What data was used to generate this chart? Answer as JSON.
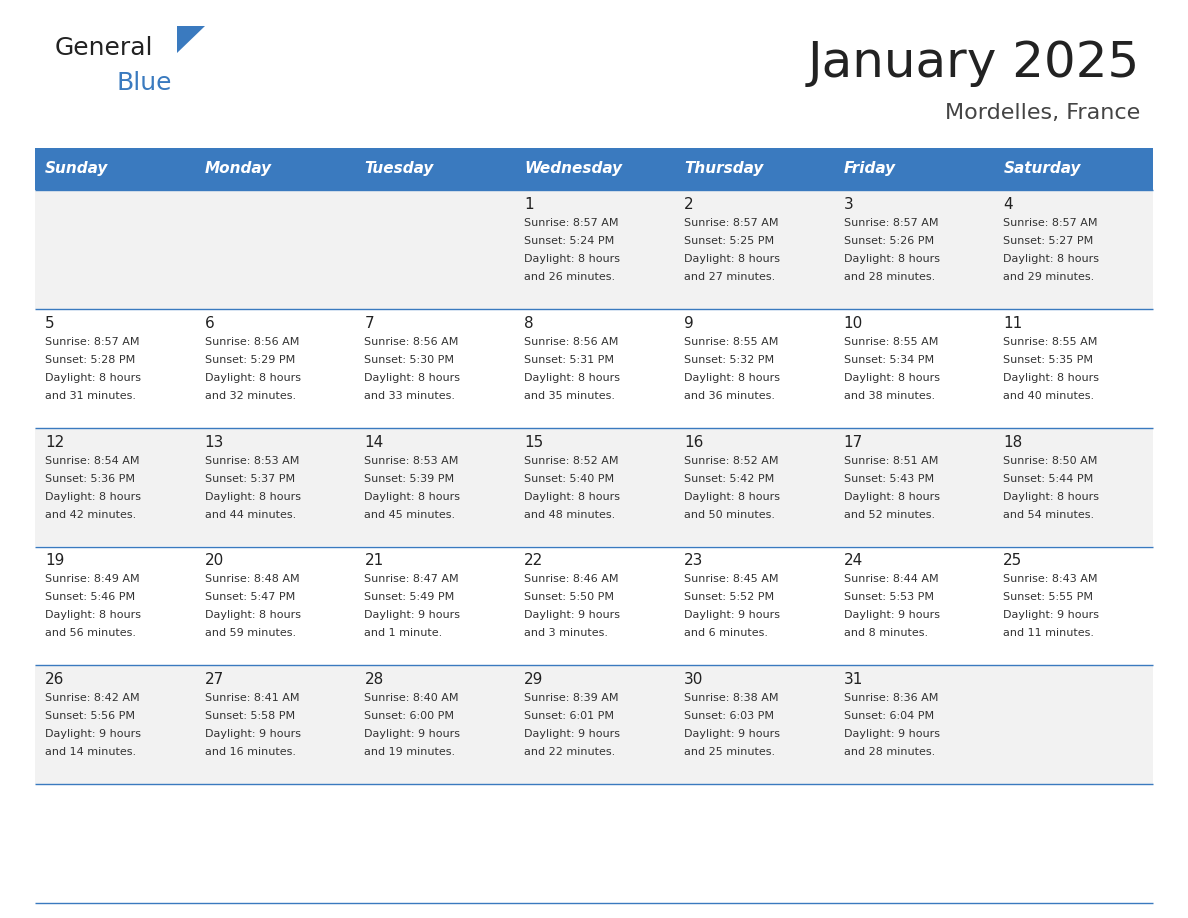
{
  "title": "January 2025",
  "subtitle": "Mordelles, France",
  "header_color": "#3a7abf",
  "header_text_color": "#ffffff",
  "day_headers": [
    "Sunday",
    "Monday",
    "Tuesday",
    "Wednesday",
    "Thursday",
    "Friday",
    "Saturday"
  ],
  "text_color": "#333333",
  "line_color": "#3a7abf",
  "row_bg_colors": [
    "#f2f2f2",
    "#ffffff",
    "#f2f2f2",
    "#ffffff",
    "#f2f2f2",
    "#ffffff"
  ],
  "days": [
    {
      "day": null,
      "sunrise": null,
      "sunset": null,
      "daylight": null
    },
    {
      "day": null,
      "sunrise": null,
      "sunset": null,
      "daylight": null
    },
    {
      "day": null,
      "sunrise": null,
      "sunset": null,
      "daylight": null
    },
    {
      "day": 1,
      "sunrise": "8:57 AM",
      "sunset": "5:24 PM",
      "daylight": "8 hours\nand 26 minutes."
    },
    {
      "day": 2,
      "sunrise": "8:57 AM",
      "sunset": "5:25 PM",
      "daylight": "8 hours\nand 27 minutes."
    },
    {
      "day": 3,
      "sunrise": "8:57 AM",
      "sunset": "5:26 PM",
      "daylight": "8 hours\nand 28 minutes."
    },
    {
      "day": 4,
      "sunrise": "8:57 AM",
      "sunset": "5:27 PM",
      "daylight": "8 hours\nand 29 minutes."
    },
    {
      "day": 5,
      "sunrise": "8:57 AM",
      "sunset": "5:28 PM",
      "daylight": "8 hours\nand 31 minutes."
    },
    {
      "day": 6,
      "sunrise": "8:56 AM",
      "sunset": "5:29 PM",
      "daylight": "8 hours\nand 32 minutes."
    },
    {
      "day": 7,
      "sunrise": "8:56 AM",
      "sunset": "5:30 PM",
      "daylight": "8 hours\nand 33 minutes."
    },
    {
      "day": 8,
      "sunrise": "8:56 AM",
      "sunset": "5:31 PM",
      "daylight": "8 hours\nand 35 minutes."
    },
    {
      "day": 9,
      "sunrise": "8:55 AM",
      "sunset": "5:32 PM",
      "daylight": "8 hours\nand 36 minutes."
    },
    {
      "day": 10,
      "sunrise": "8:55 AM",
      "sunset": "5:34 PM",
      "daylight": "8 hours\nand 38 minutes."
    },
    {
      "day": 11,
      "sunrise": "8:55 AM",
      "sunset": "5:35 PM",
      "daylight": "8 hours\nand 40 minutes."
    },
    {
      "day": 12,
      "sunrise": "8:54 AM",
      "sunset": "5:36 PM",
      "daylight": "8 hours\nand 42 minutes."
    },
    {
      "day": 13,
      "sunrise": "8:53 AM",
      "sunset": "5:37 PM",
      "daylight": "8 hours\nand 44 minutes."
    },
    {
      "day": 14,
      "sunrise": "8:53 AM",
      "sunset": "5:39 PM",
      "daylight": "8 hours\nand 45 minutes."
    },
    {
      "day": 15,
      "sunrise": "8:52 AM",
      "sunset": "5:40 PM",
      "daylight": "8 hours\nand 48 minutes."
    },
    {
      "day": 16,
      "sunrise": "8:52 AM",
      "sunset": "5:42 PM",
      "daylight": "8 hours\nand 50 minutes."
    },
    {
      "day": 17,
      "sunrise": "8:51 AM",
      "sunset": "5:43 PM",
      "daylight": "8 hours\nand 52 minutes."
    },
    {
      "day": 18,
      "sunrise": "8:50 AM",
      "sunset": "5:44 PM",
      "daylight": "8 hours\nand 54 minutes."
    },
    {
      "day": 19,
      "sunrise": "8:49 AM",
      "sunset": "5:46 PM",
      "daylight": "8 hours\nand 56 minutes."
    },
    {
      "day": 20,
      "sunrise": "8:48 AM",
      "sunset": "5:47 PM",
      "daylight": "8 hours\nand 59 minutes."
    },
    {
      "day": 21,
      "sunrise": "8:47 AM",
      "sunset": "5:49 PM",
      "daylight": "9 hours\nand 1 minute."
    },
    {
      "day": 22,
      "sunrise": "8:46 AM",
      "sunset": "5:50 PM",
      "daylight": "9 hours\nand 3 minutes."
    },
    {
      "day": 23,
      "sunrise": "8:45 AM",
      "sunset": "5:52 PM",
      "daylight": "9 hours\nand 6 minutes."
    },
    {
      "day": 24,
      "sunrise": "8:44 AM",
      "sunset": "5:53 PM",
      "daylight": "9 hours\nand 8 minutes."
    },
    {
      "day": 25,
      "sunrise": "8:43 AM",
      "sunset": "5:55 PM",
      "daylight": "9 hours\nand 11 minutes."
    },
    {
      "day": 26,
      "sunrise": "8:42 AM",
      "sunset": "5:56 PM",
      "daylight": "9 hours\nand 14 minutes."
    },
    {
      "day": 27,
      "sunrise": "8:41 AM",
      "sunset": "5:58 PM",
      "daylight": "9 hours\nand 16 minutes."
    },
    {
      "day": 28,
      "sunrise": "8:40 AM",
      "sunset": "6:00 PM",
      "daylight": "9 hours\nand 19 minutes."
    },
    {
      "day": 29,
      "sunrise": "8:39 AM",
      "sunset": "6:01 PM",
      "daylight": "9 hours\nand 22 minutes."
    },
    {
      "day": 30,
      "sunrise": "8:38 AM",
      "sunset": "6:03 PM",
      "daylight": "9 hours\nand 25 minutes."
    },
    {
      "day": 31,
      "sunrise": "8:36 AM",
      "sunset": "6:04 PM",
      "daylight": "9 hours\nand 28 minutes."
    },
    {
      "day": null,
      "sunrise": null,
      "sunset": null,
      "daylight": null
    }
  ],
  "logo_text1": "General",
  "logo_text2": "Blue",
  "logo_color1": "#222222",
  "logo_color2": "#3a7abf",
  "title_fontsize": 36,
  "subtitle_fontsize": 16,
  "header_fontsize": 11,
  "day_num_fontsize": 11,
  "cell_fontsize": 8
}
